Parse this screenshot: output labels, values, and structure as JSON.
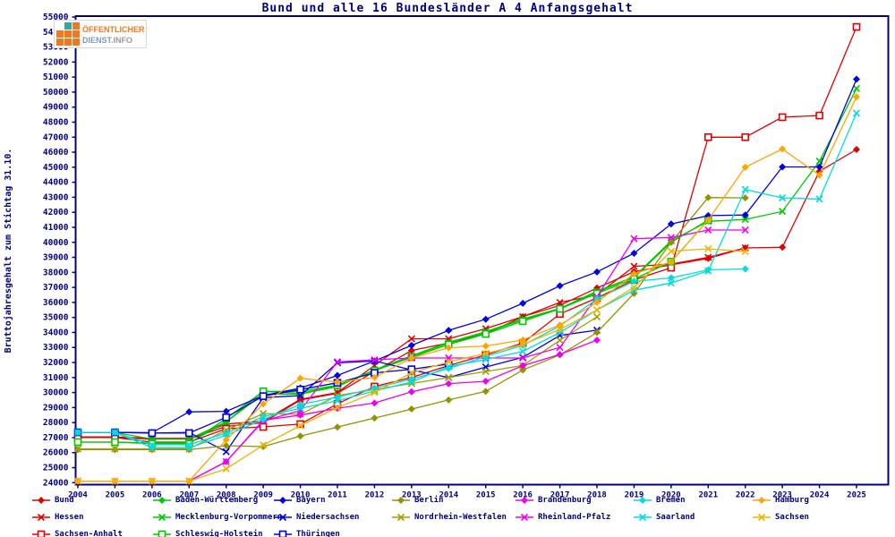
{
  "title": "Bund und alle 16 Bundesländer A 4 Anfangsgehalt",
  "logo": {
    "line1": "ÖFFENTLICHER",
    "line2_a": "DIENST",
    "line2_b": ".INFO"
  },
  "colors": {
    "axis": "#000080",
    "text": "#000080",
    "background": "#ffffff"
  },
  "chart_data": {
    "type": "line",
    "title": "Bund und alle 16 Bundesländer A 4 Anfangsgehalt",
    "xlabel": "",
    "ylabel": "Bruttojahresgehalt zum Stichtag 31.10.",
    "ylim": [
      24000,
      55000
    ],
    "ytick_step": 1000,
    "grid": false,
    "legend_position": "bottom",
    "x": [
      2004,
      2005,
      2006,
      2007,
      2008,
      2009,
      2010,
      2011,
      2012,
      2013,
      2014,
      2015,
      2016,
      2017,
      2018,
      2019,
      2020,
      2021,
      2022,
      2023,
      2024,
      2025
    ],
    "series": [
      {
        "name": "Bund",
        "color": "#e10000",
        "marker": "diamond",
        "values": [
          27000,
          27000,
          26900,
          26900,
          27750,
          28000,
          29500,
          29950,
          31400,
          32800,
          33300,
          33900,
          35050,
          35800,
          36960,
          38050,
          38500,
          38930,
          39630,
          39670,
          44720,
          46180
        ]
      },
      {
        "name": "Hessen",
        "color": "#e10000",
        "marker": "x",
        "values": [
          27050,
          27050,
          26950,
          26950,
          27900,
          28100,
          29550,
          30000,
          31800,
          33580,
          33580,
          34250,
          35050,
          36000,
          36500,
          38400,
          38550,
          39000,
          39630,
          null,
          null,
          null
        ]
      },
      {
        "name": "Sachsen-Anhalt",
        "color": "#e10000",
        "marker": "square",
        "values": [
          27000,
          27000,
          26700,
          26700,
          27590,
          27710,
          27900,
          29250,
          30400,
          31000,
          31800,
          32500,
          33300,
          35230,
          36300,
          37500,
          38310,
          47000,
          47000,
          48330,
          48440,
          54340
        ]
      },
      {
        "name": "Baden-Württemberg",
        "color": "#00c800",
        "marker": "diamond",
        "values": [
          26700,
          26700,
          26650,
          26650,
          28050,
          29900,
          29900,
          30400,
          31500,
          32400,
          33300,
          34000,
          34850,
          35570,
          36700,
          37650,
          40000,
          41480,
          null,
          null,
          null,
          null
        ]
      },
      {
        "name": "Mecklenburg-Vorpommern",
        "color": "#00c800",
        "marker": "x",
        "values": [
          27350,
          27350,
          26900,
          26900,
          28050,
          30080,
          29950,
          30450,
          31500,
          32450,
          33350,
          34050,
          34900,
          35600,
          36750,
          37700,
          40100,
          41400,
          41520,
          42060,
          45400,
          50240
        ]
      },
      {
        "name": "Schleswig-Holstein",
        "color": "#00c800",
        "marker": "square",
        "values": [
          26700,
          26700,
          26600,
          26600,
          28270,
          30080,
          30080,
          30490,
          31450,
          32350,
          33200,
          33900,
          34750,
          35570,
          36600,
          37550,
          38710,
          41480,
          null,
          null,
          null,
          null
        ]
      },
      {
        "name": "Bayern",
        "color": "#0000e0",
        "marker": "diamond",
        "values": [
          27350,
          27350,
          27330,
          28710,
          28750,
          29800,
          30300,
          31140,
          32100,
          33140,
          34140,
          34880,
          35940,
          37100,
          38030,
          39270,
          41220,
          41780,
          41820,
          45020,
          45020,
          50860
        ]
      },
      {
        "name": "Niedersachsen",
        "color": "#0000e0",
        "marker": "x",
        "values": [
          27350,
          27350,
          27300,
          27350,
          26060,
          29660,
          29800,
          31980,
          32100,
          31500,
          31000,
          31700,
          32340,
          33800,
          34150,
          null,
          null,
          null,
          null,
          null,
          null,
          null
        ]
      },
      {
        "name": "Thüringen",
        "color": "#0000e0",
        "marker": "square",
        "values": [
          27350,
          27350,
          27300,
          27300,
          28350,
          29760,
          30200,
          30650,
          31310,
          31550,
          31900,
          null,
          null,
          null,
          null,
          null,
          null,
          null,
          null,
          null,
          null,
          null
        ]
      },
      {
        "name": "Berlin",
        "color": "#8f9400",
        "marker": "diamond",
        "values": [
          26200,
          26200,
          26200,
          26200,
          26460,
          26400,
          27100,
          27700,
          28300,
          28900,
          29510,
          30080,
          31500,
          32500,
          34000,
          36600,
          40000,
          42980,
          42960,
          null,
          null,
          null
        ]
      },
      {
        "name": "Nordrhein-Westfalen",
        "color": "#a0a000",
        "marker": "x",
        "values": [
          26250,
          26250,
          26250,
          26250,
          27500,
          28600,
          28550,
          29800,
          30200,
          30600,
          31000,
          31400,
          31800,
          33480,
          35040,
          null,
          null,
          null,
          null,
          null,
          null,
          null
        ]
      },
      {
        "name": "Brandenburg",
        "color": "#ee00ee",
        "marker": "diamond",
        "values": [
          24100,
          24100,
          24100,
          24100,
          25400,
          28150,
          28500,
          28950,
          29300,
          30050,
          30590,
          30750,
          31790,
          32540,
          33490,
          null,
          null,
          null,
          null,
          null,
          null,
          null
        ]
      },
      {
        "name": "Rheinland-Pfalz",
        "color": "#ee00ee",
        "marker": "x",
        "values": [
          24100,
          24100,
          24100,
          24100,
          25400,
          28100,
          28810,
          32040,
          32180,
          32300,
          32300,
          32300,
          32300,
          33000,
          36380,
          40240,
          40320,
          40820,
          40820,
          null,
          null,
          null
        ]
      },
      {
        "name": "Bremen",
        "color": "#00dcdc",
        "marker": "diamond",
        "values": [
          27350,
          27350,
          26330,
          26330,
          27150,
          28200,
          29210,
          29690,
          30300,
          30900,
          31600,
          32400,
          33140,
          34440,
          36240,
          37400,
          37630,
          38170,
          38230,
          null,
          null,
          null
        ]
      },
      {
        "name": "Saarland",
        "color": "#00dcdc",
        "marker": "x",
        "values": [
          27350,
          27350,
          26530,
          26530,
          27300,
          28400,
          28950,
          29450,
          30100,
          30700,
          31740,
          32200,
          32740,
          34000,
          35500,
          36810,
          37290,
          38100,
          43520,
          42960,
          42880,
          48600
        ]
      },
      {
        "name": "Hamburg",
        "color": "#ffa500",
        "marker": "diamond",
        "values": [
          24100,
          24100,
          24100,
          24100,
          26850,
          29240,
          30950,
          30700,
          31000,
          32300,
          32980,
          33100,
          33500,
          34500,
          36000,
          37900,
          38700,
          41500,
          45000,
          46210,
          44480,
          49680
        ]
      },
      {
        "name": "Sachsen",
        "color": "#f0b400",
        "marker": "x",
        "values": [
          24100,
          24100,
          24100,
          24100,
          24920,
          26500,
          27800,
          29000,
          30000,
          31310,
          32050,
          32600,
          33200,
          34200,
          35500,
          37000,
          39400,
          39570,
          39390,
          null,
          null,
          null
        ]
      }
    ],
    "legend_columns": [
      [
        "Bund",
        "Hessen",
        "Sachsen-Anhalt"
      ],
      [
        "Baden-Württemberg",
        "Mecklenburg-Vorpommern",
        "Schleswig-Holstein"
      ],
      [
        "Bayern",
        "Niedersachsen",
        "Thüringen"
      ],
      [
        "Berlin",
        "Nordrhein-Westfalen"
      ],
      [
        "Brandenburg",
        "Rheinland-Pfalz"
      ],
      [
        "Bremen",
        "Saarland"
      ],
      [
        "Hamburg",
        "Sachsen"
      ]
    ]
  }
}
